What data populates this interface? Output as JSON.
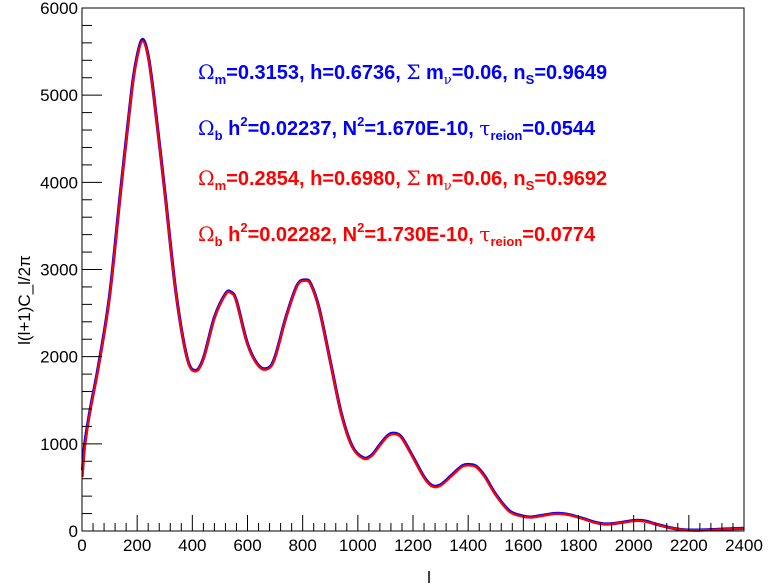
{
  "colors": {
    "series_a": "#0000ff",
    "series_b": "#ff0000",
    "axis": "#000000"
  },
  "chart_data": {
    "type": "line",
    "title": "",
    "xlabel": "l",
    "ylabel": "l(l+1)C_l/2π",
    "xlim": [
      0,
      2400
    ],
    "ylim": [
      0,
      6000
    ],
    "x_ticks": [
      0,
      200,
      400,
      600,
      800,
      1000,
      1200,
      1400,
      1600,
      1800,
      2000,
      2200,
      2400
    ],
    "y_ticks": [
      0,
      1000,
      2000,
      3000,
      4000,
      5000,
      6000
    ],
    "grid": false,
    "legend": [
      {
        "color": "#0000ff",
        "lines": [
          {
            "prefix": "Ω",
            "prefix_sub": "m",
            "text1": "=0.3153, h=0.6736, ",
            "sym": "Σ",
            "text2": " m",
            "sym2": "ν",
            "text3": "=0.06, n",
            "sub": "S",
            "text4": "=0.9649"
          },
          {
            "prefix": "Ω",
            "prefix_sub": "b",
            "text1": " h",
            "sup1": "2",
            "text2": "=0.02237, N",
            "sup2": "2",
            "text3": "=1.670E-10, ",
            "sym": "τ",
            "sub": "reion",
            "text4": "=0.0544"
          }
        ]
      },
      {
        "color": "#ff0000",
        "lines": [
          {
            "prefix": "Ω",
            "prefix_sub": "m",
            "text1": "=0.2854, h=0.6980, ",
            "sym": "Σ",
            "text2": " m",
            "sym2": "ν",
            "text3": "=0.06, n",
            "sub": "S",
            "text4": "=0.9692"
          },
          {
            "prefix": "Ω",
            "prefix_sub": "b",
            "text1": " h",
            "sup1": "2",
            "text2": "=0.02282, N",
            "sup2": "2",
            "text3": "=1.730E-10, ",
            "sym": "τ",
            "sub": "reion",
            "text4": "=0.0774"
          }
        ]
      }
    ],
    "series": [
      {
        "color": "#0000ff",
        "x": [
          2,
          10,
          30,
          60,
          100,
          140,
          180,
          200,
          220,
          240,
          260,
          300,
          340,
          380,
          410,
          440,
          480,
          520,
          540,
          560,
          600,
          640,
          675,
          700,
          740,
          780,
          810,
          830,
          860,
          900,
          940,
          980,
          1020,
          1050,
          1080,
          1110,
          1135,
          1160,
          1200,
          1240,
          1270,
          1300,
          1340,
          1380,
          1410,
          1430,
          1460,
          1500,
          1550,
          1600,
          1630,
          1670,
          1710,
          1740,
          1770,
          1820,
          1860,
          1900,
          1950,
          2000,
          2040,
          2080,
          2130,
          2180,
          2230,
          2300,
          2350,
          2400
        ],
        "y": [
          700,
          1000,
          1400,
          1900,
          2700,
          3900,
          5050,
          5450,
          5640,
          5450,
          5000,
          3900,
          2750,
          2000,
          1840,
          1980,
          2450,
          2720,
          2740,
          2640,
          2150,
          1900,
          1870,
          2000,
          2460,
          2820,
          2880,
          2830,
          2550,
          1950,
          1350,
          970,
          840,
          870,
          990,
          1100,
          1120,
          1070,
          850,
          620,
          520,
          530,
          640,
          750,
          760,
          740,
          630,
          420,
          230,
          170,
          160,
          180,
          200,
          200,
          185,
          140,
          100,
          80,
          95,
          120,
          115,
          80,
          40,
          15,
          10,
          18,
          25,
          30
        ]
      },
      {
        "color": "#ff0000",
        "x": [
          2,
          10,
          30,
          60,
          100,
          140,
          180,
          200,
          220,
          240,
          260,
          300,
          340,
          380,
          410,
          440,
          480,
          520,
          540,
          560,
          600,
          640,
          675,
          700,
          740,
          780,
          810,
          830,
          860,
          900,
          940,
          980,
          1020,
          1050,
          1080,
          1110,
          1135,
          1160,
          1200,
          1240,
          1270,
          1300,
          1340,
          1380,
          1410,
          1430,
          1460,
          1500,
          1550,
          1600,
          1630,
          1670,
          1710,
          1740,
          1770,
          1820,
          1860,
          1900,
          1950,
          2000,
          2040,
          2080,
          2130,
          2180,
          2230,
          2300,
          2350,
          2400
        ],
        "y": [
          620,
          950,
          1380,
          1880,
          2680,
          3880,
          5030,
          5430,
          5620,
          5430,
          4980,
          3880,
          2740,
          1990,
          1830,
          1970,
          2440,
          2710,
          2730,
          2630,
          2140,
          1890,
          1860,
          1990,
          2450,
          2810,
          2870,
          2820,
          2540,
          1940,
          1340,
          960,
          830,
          860,
          980,
          1090,
          1110,
          1060,
          840,
          610,
          510,
          520,
          630,
          740,
          750,
          730,
          620,
          410,
          220,
          165,
          155,
          175,
          195,
          195,
          180,
          135,
          95,
          78,
          92,
          115,
          110,
          78,
          38,
          14,
          9,
          16,
          23,
          28
        ]
      }
    ]
  }
}
